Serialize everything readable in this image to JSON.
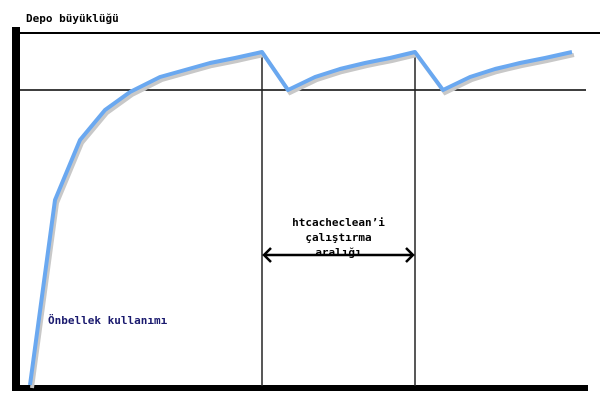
{
  "diagram": {
    "y_axis_label": "Depo büyüklüğü",
    "interval_label_lines": [
      "htcacheclean’i",
      "çalıştırma",
      "aralığı"
    ],
    "curve_label": "Önbellek kullanımı",
    "colors": {
      "curve": "#6aa8f0",
      "curve_label": "#1a1a6e",
      "axes": "#000000"
    }
  }
}
